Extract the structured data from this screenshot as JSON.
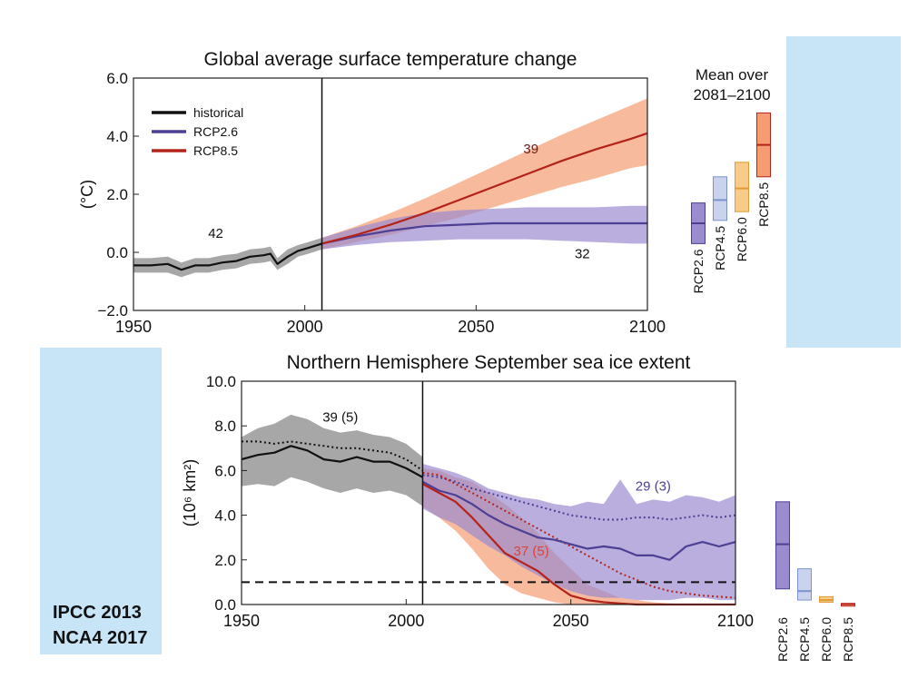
{
  "colors": {
    "historical": "#111111",
    "rcp26": "#4d3f94",
    "rcp26_band": "#9b8cd0",
    "rcp45": "#7c92cc",
    "rcp45_band": "#c9d3ee",
    "rcp60": "#e39a35",
    "rcp60_band": "#f6cc88",
    "rcp85": "#b4231a",
    "rcp85_band": "#f59c72",
    "hist_band": "#8a8a8a",
    "background_panel": "#c8e5f7"
  },
  "credits": {
    "line1": "IPCC 2013",
    "line2": "NCA4 2017"
  },
  "chart_data": [
    {
      "type": "line",
      "title": "Global average surface temperature change",
      "ylabel": "(°C)",
      "xlim": [
        1950,
        2100
      ],
      "ylim": [
        -2,
        6
      ],
      "x_ticks": [
        "1950",
        "2000",
        "2050",
        "2100"
      ],
      "y_ticks": [
        "6.0",
        "4.0",
        "2.0",
        "0.0",
        "−2.0"
      ],
      "divider_x": 2005,
      "legend": [
        "historical",
        "RCP2.6",
        "RCP8.5"
      ],
      "annotations": [
        {
          "text": "42",
          "x": 1974,
          "y": 0.5,
          "series": "historical"
        },
        {
          "text": "39",
          "x": 2066,
          "y": 3.4,
          "series": "RCP8.5"
        },
        {
          "text": "32",
          "x": 2081,
          "y": -0.2,
          "series": "RCP2.6"
        }
      ],
      "series": [
        {
          "name": "historical",
          "x": [
            1950,
            1955,
            1960,
            1964,
            1968,
            1972,
            1976,
            1980,
            1984,
            1988,
            1990,
            1992,
            1995,
            1998,
            2001,
            2005
          ],
          "y": [
            -0.45,
            -0.45,
            -0.4,
            -0.6,
            -0.45,
            -0.45,
            -0.35,
            -0.3,
            -0.15,
            -0.1,
            -0.05,
            -0.4,
            -0.15,
            0.05,
            0.15,
            0.3
          ],
          "lower": [
            -0.7,
            -0.7,
            -0.7,
            -0.85,
            -0.7,
            -0.7,
            -0.6,
            -0.55,
            -0.4,
            -0.35,
            -0.3,
            -0.6,
            -0.4,
            -0.15,
            -0.05,
            0.1
          ],
          "upper": [
            -0.2,
            -0.2,
            -0.15,
            -0.35,
            -0.2,
            -0.2,
            -0.1,
            -0.05,
            0.1,
            0.15,
            0.2,
            -0.2,
            0.1,
            0.25,
            0.35,
            0.5
          ]
        },
        {
          "name": "RCP2.6",
          "x": [
            2005,
            2015,
            2025,
            2035,
            2045,
            2055,
            2065,
            2075,
            2085,
            2095,
            2100
          ],
          "y": [
            0.3,
            0.55,
            0.75,
            0.9,
            0.95,
            1.0,
            1.0,
            1.0,
            1.0,
            1.0,
            1.0
          ],
          "lower": [
            0.1,
            0.25,
            0.35,
            0.4,
            0.45,
            0.45,
            0.45,
            0.4,
            0.35,
            0.3,
            0.3
          ],
          "upper": [
            0.5,
            0.85,
            1.15,
            1.35,
            1.45,
            1.5,
            1.55,
            1.55,
            1.55,
            1.6,
            1.6
          ]
        },
        {
          "name": "RCP8.5",
          "x": [
            2005,
            2015,
            2025,
            2035,
            2045,
            2055,
            2065,
            2075,
            2085,
            2095,
            2100
          ],
          "y": [
            0.3,
            0.6,
            0.95,
            1.35,
            1.8,
            2.25,
            2.7,
            3.15,
            3.55,
            3.9,
            4.1
          ],
          "lower": [
            0.1,
            0.35,
            0.6,
            0.9,
            1.2,
            1.55,
            1.9,
            2.25,
            2.55,
            2.9,
            3.0
          ],
          "upper": [
            0.5,
            0.9,
            1.35,
            1.85,
            2.4,
            2.95,
            3.5,
            4.05,
            4.55,
            5.05,
            5.3
          ]
        }
      ],
      "side_bars": {
        "title": "Mean over 2081–2100",
        "bars": [
          {
            "name": "RCP2.6",
            "low": 0.3,
            "high": 1.7,
            "mean": 1.0
          },
          {
            "name": "RCP4.5",
            "low": 1.1,
            "high": 2.6,
            "mean": 1.8
          },
          {
            "name": "RCP6.0",
            "low": 1.4,
            "high": 3.1,
            "mean": 2.2
          },
          {
            "name": "RCP8.5",
            "low": 2.6,
            "high": 4.8,
            "mean": 3.7
          }
        ]
      }
    },
    {
      "type": "line",
      "title": "Northern Hemisphere September sea ice extent",
      "ylabel": "(10⁶ km²)",
      "xlim": [
        1950,
        2100
      ],
      "ylim": [
        0,
        10
      ],
      "x_ticks": [
        "1950",
        "2000",
        "2050",
        "2100"
      ],
      "y_ticks": [
        "10.0",
        "8.0",
        "6.0",
        "4.0",
        "2.0",
        "0.0"
      ],
      "divider_x": 2005,
      "threshold_y": 1.0,
      "annotations": [
        {
          "text": "39 (5)",
          "x": 1980,
          "y": 8.2,
          "series": "historical"
        },
        {
          "text": "29 (3)",
          "x": 2075,
          "y": 5.1,
          "series": "RCP2.6"
        },
        {
          "text": "37 (5)",
          "x": 2038,
          "y": 2.2,
          "series": "RCP8.5"
        }
      ],
      "series": [
        {
          "name": "historical",
          "x": [
            1950,
            1955,
            1960,
            1965,
            1970,
            1975,
            1980,
            1985,
            1990,
            1995,
            2000,
            2005
          ],
          "y": [
            6.5,
            6.7,
            6.8,
            7.1,
            6.9,
            6.5,
            6.4,
            6.6,
            6.4,
            6.4,
            6.1,
            5.7
          ],
          "dotted": [
            7.3,
            7.3,
            7.2,
            7.3,
            7.2,
            7.1,
            7.0,
            7.0,
            6.9,
            6.8,
            6.5,
            6.0
          ],
          "lower": [
            5.3,
            5.4,
            5.3,
            5.7,
            5.5,
            5.2,
            5.0,
            5.2,
            5.0,
            5.1,
            4.9,
            4.4
          ],
          "upper": [
            7.5,
            7.9,
            8.1,
            8.5,
            8.3,
            7.9,
            7.7,
            7.8,
            7.6,
            7.5,
            7.2,
            6.6
          ]
        },
        {
          "name": "RCP2.6",
          "x": [
            2005,
            2010,
            2015,
            2020,
            2025,
            2030,
            2035,
            2040,
            2045,
            2050,
            2055,
            2060,
            2065,
            2070,
            2075,
            2080,
            2085,
            2090,
            2095,
            2100
          ],
          "y": [
            5.5,
            5.1,
            4.9,
            4.5,
            4.0,
            3.6,
            3.3,
            3.0,
            2.9,
            2.7,
            2.5,
            2.6,
            2.5,
            2.2,
            2.2,
            2.0,
            2.6,
            2.8,
            2.6,
            2.8
          ],
          "dotted": [
            5.8,
            5.7,
            5.5,
            5.2,
            5.0,
            4.8,
            4.6,
            4.4,
            4.2,
            4.0,
            3.9,
            3.8,
            3.8,
            3.9,
            3.9,
            3.8,
            3.9,
            4.0,
            3.9,
            4.0
          ],
          "lower": [
            4.3,
            3.9,
            3.6,
            3.1,
            2.6,
            2.2,
            1.7,
            1.3,
            0.9,
            0.6,
            0.4,
            0.3,
            0.3,
            0.2,
            0.2,
            0.2,
            0.3,
            0.3,
            0.2,
            0.2
          ],
          "upper": [
            6.3,
            6.1,
            5.9,
            5.6,
            5.2,
            5.0,
            4.8,
            4.7,
            4.5,
            4.4,
            4.6,
            4.5,
            5.6,
            4.5,
            4.7,
            4.6,
            4.9,
            4.8,
            4.6,
            4.9
          ]
        },
        {
          "name": "RCP8.5",
          "x": [
            2005,
            2010,
            2015,
            2020,
            2025,
            2030,
            2035,
            2040,
            2045,
            2050,
            2055,
            2060,
            2065,
            2070,
            2075,
            2080,
            2085,
            2090,
            2095,
            2100
          ],
          "y": [
            5.4,
            5.0,
            4.6,
            3.9,
            3.1,
            2.3,
            1.9,
            1.5,
            0.9,
            0.4,
            0.2,
            0.1,
            0.05,
            0.0,
            0.0,
            0.0,
            0.0,
            0.0,
            0.0,
            0.0
          ],
          "dotted": [
            5.9,
            5.8,
            5.4,
            5.0,
            4.6,
            4.2,
            3.8,
            3.4,
            3.0,
            2.6,
            2.2,
            1.8,
            1.4,
            1.1,
            0.8,
            0.6,
            0.5,
            0.4,
            0.35,
            0.3
          ],
          "lower": [
            4.4,
            3.9,
            3.3,
            2.5,
            1.6,
            0.9,
            0.5,
            0.3,
            0.1,
            0.0,
            0.0,
            0.0,
            0.0,
            0.0,
            0.0,
            0.0,
            0.0,
            0.0,
            0.0,
            0.0
          ],
          "upper": [
            6.1,
            6.0,
            5.7,
            5.5,
            5.0,
            4.5,
            3.9,
            3.2,
            2.3,
            1.6,
            0.9,
            0.6,
            0.3,
            0.2,
            0.1,
            0.05,
            0.0,
            0.0,
            0.0,
            0.0
          ]
        }
      ],
      "side_bars": {
        "bars": [
          {
            "name": "RCP2.6",
            "low": 0.7,
            "high": 4.6,
            "mean": 2.7
          },
          {
            "name": "RCP4.5",
            "low": 0.2,
            "high": 1.6,
            "mean": 0.6
          },
          {
            "name": "RCP6.0",
            "low": 0.1,
            "high": 0.35,
            "mean": 0.2
          },
          {
            "name": "RCP8.5",
            "low": 0.0,
            "high": 0.05,
            "mean": 0.02
          }
        ]
      }
    }
  ]
}
